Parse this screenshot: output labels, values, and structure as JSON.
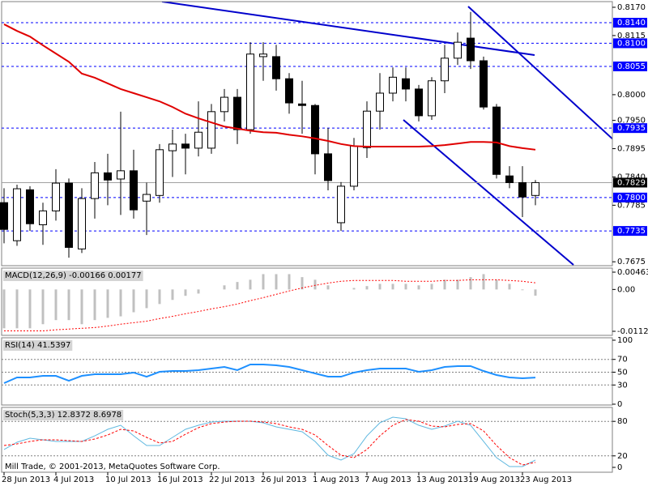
{
  "footer_text": "Mill Trade, © 2001-2013, MetaQuotes Software Corp.",
  "chart_data": [
    {
      "type": "candlestick",
      "categories": [
        "28 Jun 2013",
        null,
        null,
        null,
        "4 Jul 2013",
        null,
        null,
        null,
        "10 Jul 2013",
        null,
        null,
        null,
        "16 Jul 2013",
        null,
        null,
        null,
        "22 Jul 2013",
        null,
        null,
        null,
        "26 Jul 2013",
        null,
        null,
        null,
        "1 Aug 2013",
        null,
        null,
        null,
        "7 Aug 2013",
        null,
        null,
        null,
        "13 Aug 2013",
        null,
        null,
        null,
        "19 Aug 2013",
        null,
        null,
        null,
        "23 Aug 2013",
        null
      ],
      "open": [
        0.779,
        0.7716,
        0.7815,
        0.7747,
        0.7774,
        0.7828,
        0.77,
        0.7798,
        0.7848,
        0.7836,
        0.7852,
        0.7793,
        0.7804,
        0.7891,
        0.7904,
        0.7896,
        0.7896,
        0.7967,
        0.7995,
        0.7932,
        0.8074,
        0.8074,
        0.8031,
        0.7982,
        0.7979,
        0.7885,
        0.7751,
        0.7822,
        0.7897,
        0.7968,
        0.8003,
        0.8031,
        0.8011,
        0.7959,
        0.8027,
        0.8071,
        0.811,
        0.8066,
        0.7976,
        0.7842,
        0.7829,
        0.7804
      ],
      "high": [
        0.7818,
        0.7825,
        0.7822,
        0.779,
        0.7855,
        0.7837,
        0.7818,
        0.7869,
        0.7885,
        0.7967,
        0.7893,
        0.7829,
        0.7904,
        0.7932,
        0.7924,
        0.7987,
        0.7982,
        0.8011,
        0.8011,
        0.8102,
        0.8102,
        0.8097,
        0.8042,
        0.8027,
        0.7982,
        0.7935,
        0.783,
        0.7916,
        0.7987,
        0.8042,
        0.8053,
        0.8053,
        0.8019,
        0.8034,
        0.8097,
        0.8121,
        0.8161,
        0.8074,
        0.7982,
        0.7861,
        0.7861,
        0.7834
      ],
      "low": [
        0.7711,
        0.7706,
        0.7735,
        0.7708,
        0.7755,
        0.7683,
        0.7692,
        0.7759,
        0.7785,
        0.7766,
        0.7759,
        0.7727,
        0.779,
        0.784,
        0.7845,
        0.788,
        0.7885,
        0.7948,
        0.7904,
        0.7924,
        0.8027,
        0.8008,
        0.7963,
        0.7924,
        0.7845,
        0.7814,
        0.7735,
        0.7814,
        0.7877,
        0.7932,
        0.7987,
        0.7987,
        0.7948,
        0.7951,
        0.8003,
        0.8058,
        0.805,
        0.7971,
        0.7837,
        0.7818,
        0.7762,
        0.7785
      ],
      "close": [
        0.7738,
        0.7817,
        0.7749,
        0.7774,
        0.7828,
        0.7703,
        0.7798,
        0.7848,
        0.7834,
        0.7852,
        0.7776,
        0.7806,
        0.7893,
        0.7904,
        0.7896,
        0.7927,
        0.7967,
        0.7995,
        0.7932,
        0.8079,
        0.8079,
        0.8031,
        0.7984,
        0.7979,
        0.7885,
        0.7833,
        0.7822,
        0.79,
        0.7968,
        0.8003,
        0.8034,
        0.8011,
        0.7959,
        0.8027,
        0.8071,
        0.8102,
        0.8066,
        0.7976,
        0.7845,
        0.7829,
        0.7801,
        0.7829
      ],
      "moving_average": {
        "color": "#e00000",
        "values": [
          0.8137,
          0.8124,
          0.8113,
          0.8096,
          0.808,
          0.8064,
          0.8041,
          0.8033,
          0.8022,
          0.8011,
          0.8003,
          0.7995,
          0.7987,
          0.7976,
          0.7963,
          0.7954,
          0.7946,
          0.7938,
          0.7934,
          0.793,
          0.7927,
          0.7926,
          0.7922,
          0.7919,
          0.7915,
          0.791,
          0.7904,
          0.79,
          0.7899,
          0.7899,
          0.7899,
          0.7899,
          0.7899,
          0.79,
          0.7902,
          0.7905,
          0.7908,
          0.7908,
          0.7907,
          0.79,
          0.7896,
          0.7893
        ]
      },
      "ylim": [
        0.7669,
        0.8181
      ],
      "yticks": [
        {
          "value": 0.817,
          "label": "0.8170"
        },
        {
          "value": 0.8115,
          "label": "0.8115"
        },
        {
          "value": 0.8,
          "label": "0.8000"
        },
        {
          "value": 0.795,
          "label": "0.7950"
        },
        {
          "value": 0.7895,
          "label": "0.7895"
        },
        {
          "value": 0.784,
          "label": "0.7840"
        },
        {
          "value": 0.7785,
          "label": "0.7785"
        },
        {
          "value": 0.7675,
          "label": "0.7675"
        }
      ],
      "levels": [
        {
          "value": 0.814,
          "label": "0.8140"
        },
        {
          "value": 0.81,
          "label": "0.8100"
        },
        {
          "value": 0.8055,
          "label": "0.8055"
        },
        {
          "value": 0.7935,
          "label": "0.7935"
        },
        {
          "value": 0.78,
          "label": "0.7800"
        },
        {
          "value": 0.7735,
          "label": "0.7735"
        }
      ],
      "level_color": "#0000ff",
      "current_price": {
        "value": 0.7829,
        "label": "0.7829"
      }
    },
    {
      "type": "macd",
      "title": "MACD(12,26,9) -0.00166 0.00177",
      "histogram": {
        "color": "#c0c0c0",
        "values": [
          -0.0104,
          -0.0104,
          -0.0104,
          -0.0093,
          -0.0082,
          -0.0082,
          -0.0093,
          -0.0082,
          -0.0076,
          -0.0072,
          -0.0061,
          -0.005,
          -0.0039,
          -0.0028,
          -0.0017,
          -0.0011,
          0,
          0.0011,
          0.002,
          0.0026,
          0.0041,
          0.0041,
          0.0041,
          0.0033,
          0.0026,
          0.0011,
          0,
          0.0004,
          0.0009,
          0.0015,
          0.0015,
          0.0015,
          0.0011,
          0.0015,
          0.0026,
          0.0026,
          0.0033,
          0.0041,
          0.0026,
          0.0015,
          -0.0002,
          -0.00166
        ]
      },
      "signal": {
        "color": "#ff0000",
        "values": [
          -0.0111,
          -0.0111,
          -0.0111,
          -0.0111,
          -0.0108,
          -0.0106,
          -0.0104,
          -0.0102,
          -0.0098,
          -0.0093,
          -0.0089,
          -0.0085,
          -0.0078,
          -0.0072,
          -0.0065,
          -0.0059,
          -0.0052,
          -0.0046,
          -0.0039,
          -0.003,
          -0.0022,
          -0.0013,
          -0.0004,
          0.0004,
          0.0011,
          0.0017,
          0.0022,
          0.0024,
          0.0024,
          0.0024,
          0.0024,
          0.0022,
          0.0022,
          0.0022,
          0.0024,
          0.0024,
          0.0026,
          0.0026,
          0.0026,
          0.0024,
          0.0022,
          0.00177
        ]
      },
      "ylim": [
        -0.0112,
        0.00463
      ],
      "yticks": [
        0.00463,
        {
          "value": 0,
          "label": "0.00"
        },
        -0.0112
      ]
    },
    {
      "type": "line",
      "title": "RSI(14) 41.5397",
      "color": "#1e90ff",
      "values": [
        32.9,
        41.8,
        41.8,
        44.3,
        44.3,
        36.7,
        44.3,
        46.8,
        46.8,
        46.8,
        49.4,
        43.0,
        50.6,
        51.9,
        51.9,
        53.2,
        55.7,
        58.2,
        53.2,
        62.0,
        62.0,
        60.8,
        58.2,
        53.2,
        48.1,
        43.0,
        43.0,
        49.4,
        53.2,
        55.7,
        55.7,
        55.7,
        50.6,
        53.2,
        58.2,
        59.5,
        59.5,
        51.9,
        45.6,
        41.8,
        40.5,
        41.5397
      ],
      "ylim": [
        0,
        100
      ],
      "yticks": [
        100,
        70,
        50,
        30,
        0
      ],
      "grid": true
    },
    {
      "type": "stochastic",
      "title": "Stoch(5,3,3) 12.8372 8.6978",
      "main": {
        "color": "#5fb8e0",
        "values": [
          31.0,
          43.7,
          50.7,
          47.9,
          45.1,
          45.1,
          45.1,
          54.9,
          66.2,
          73.2,
          54.9,
          38.0,
          38.0,
          52.1,
          66.2,
          73.2,
          78.9,
          80.3,
          80.3,
          80.3,
          77.5,
          70.4,
          66.2,
          62.0,
          45.1,
          21.1,
          12.7,
          23.9,
          54.9,
          77.5,
          87.3,
          84.5,
          73.2,
          66.2,
          71.8,
          80.3,
          73.2,
          45.1,
          16.9,
          1.4,
          1.4,
          12.8372
        ]
      },
      "signal": {
        "color": "#ff0000",
        "values": [
          38.0,
          40.8,
          45.1,
          47.9,
          47.9,
          46.5,
          45.1,
          49.3,
          56.3,
          66.2,
          63.4,
          52.1,
          42.3,
          45.1,
          57.7,
          69.0,
          76.1,
          78.9,
          80.3,
          80.3,
          78.9,
          76.1,
          70.4,
          66.2,
          56.3,
          38.0,
          21.1,
          16.9,
          31.0,
          54.9,
          73.2,
          83.1,
          80.3,
          71.8,
          70.4,
          74.6,
          76.1,
          63.4,
          38.0,
          16.9,
          4.2,
          8.6978
        ]
      },
      "ylim": [
        0,
        100
      ],
      "yticks": [
        80,
        20,
        0
      ],
      "grid": true
    }
  ]
}
